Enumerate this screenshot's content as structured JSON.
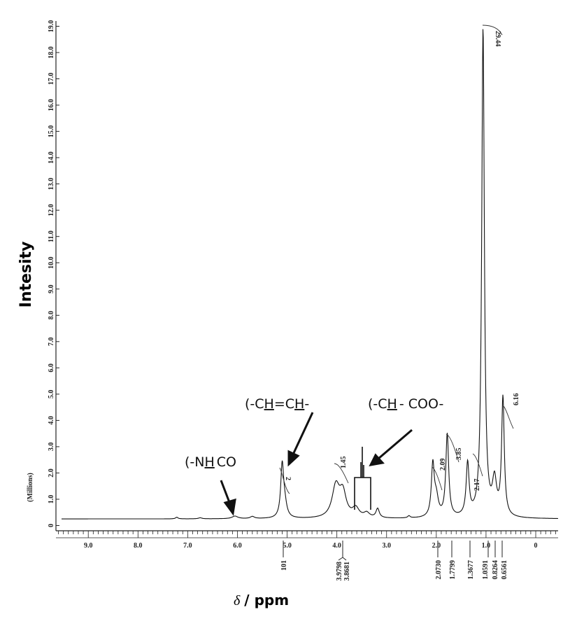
{
  "chart_data": {
    "type": "line",
    "title": "",
    "xlabel_symbol": "δ",
    "xlabel": "/ ppm",
    "ylabel": "Intesity",
    "y_unit": "(Millions)",
    "xlim": [
      9.65,
      -0.45
    ],
    "ylim": [
      -0.2,
      19.2
    ],
    "x_ticks": [
      "9.0",
      "8.0",
      "7.0",
      "6.0",
      "5.0",
      "4.0",
      "3.0",
      "2.0",
      "1.0",
      "0"
    ],
    "y_ticks": [
      "0",
      "1.0",
      "2.0",
      "3.0",
      "4.0",
      "5.0",
      "6.0",
      "7.0",
      "8.0",
      "9.0",
      "10.0",
      "11.0",
      "12.0",
      "13.0",
      "14.0",
      "15.0",
      "16.0",
      "17.0",
      "18.0",
      "19.0"
    ],
    "baseline": 0.25,
    "peaks": [
      {
        "ppm": 7.22,
        "height": 0.06,
        "width": 0.03
      },
      {
        "ppm": 6.75,
        "height": 0.04,
        "width": 0.04
      },
      {
        "ppm": 6.05,
        "height": 0.1,
        "width": 0.07
      },
      {
        "ppm": 5.7,
        "height": 0.08,
        "width": 0.05
      },
      {
        "ppm": 5.1,
        "height": 1.95,
        "width": 0.035
      },
      {
        "ppm": 5.05,
        "height": 0.5,
        "width": 0.05
      },
      {
        "ppm": 4.02,
        "height": 1.2,
        "width": 0.09
      },
      {
        "ppm": 3.88,
        "height": 0.9,
        "width": 0.08
      },
      {
        "ppm": 3.62,
        "height": 0.35,
        "width": 0.08
      },
      {
        "ppm": 3.4,
        "height": 0.18,
        "width": 0.07
      },
      {
        "ppm": 3.18,
        "height": 0.35,
        "width": 0.04
      },
      {
        "ppm": 2.55,
        "height": 0.08,
        "width": 0.03
      },
      {
        "ppm": 2.07,
        "height": 1.95,
        "width": 0.035
      },
      {
        "ppm": 2.0,
        "height": 0.7,
        "width": 0.05
      },
      {
        "ppm": 1.78,
        "height": 3.15,
        "width": 0.035
      },
      {
        "ppm": 1.37,
        "height": 2.0,
        "width": 0.035
      },
      {
        "ppm": 1.06,
        "height": 18.6,
        "width": 0.032
      },
      {
        "ppm": 0.83,
        "height": 1.3,
        "width": 0.05
      },
      {
        "ppm": 0.66,
        "height": 4.5,
        "width": 0.032
      }
    ],
    "integrals": [
      {
        "label": "2",
        "ppm": 5.08
      },
      {
        "label": "1.45",
        "ppm": 3.86
      },
      {
        "label": "2.09",
        "ppm": 2.02
      },
      {
        "label": "3.85",
        "ppm": 1.68
      },
      {
        "label": "2.17",
        "ppm": 1.26
      },
      {
        "label": "29.44",
        "ppm": 0.85
      },
      {
        "label": "6.16",
        "ppm": 0.5
      }
    ],
    "peak_labels": [
      "101",
      "3.9798",
      "3.8681",
      "2.0730",
      "1.7799",
      "1.3677",
      "1.0591",
      "0.8264",
      "0.6561"
    ],
    "annotations": [
      {
        "pre": "(-N",
        "u": "H",
        "post": "CO"
      },
      {
        "pre": "(-C",
        "u": "H",
        "mid": "=C",
        "u2": "H",
        "post": "-"
      },
      {
        "pre": "(-C",
        "u": "H",
        "post": "- COO-"
      }
    ]
  }
}
